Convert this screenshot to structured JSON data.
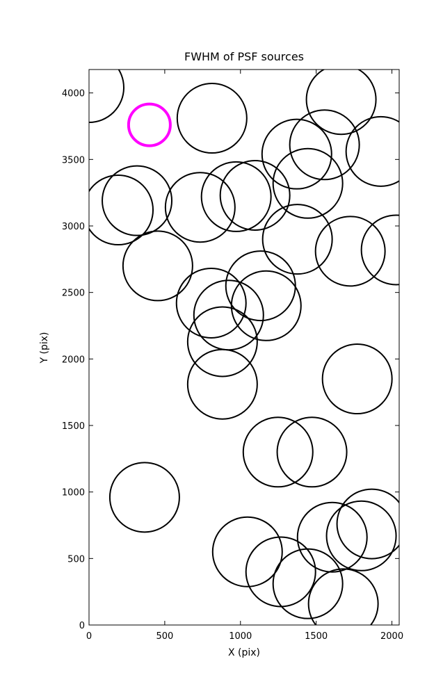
{
  "chart_data": {
    "type": "scatter",
    "title": "FWHM of PSF sources",
    "x_label": "X (pix)",
    "y_label": "Y (pix)",
    "xlim": [
      0,
      2048
    ],
    "ylim": [
      0,
      4176
    ],
    "xticks": [
      0,
      500,
      1000,
      1500,
      2000
    ],
    "yticks": [
      0,
      500,
      1000,
      1500,
      2000,
      2500,
      3000,
      3500,
      4000
    ],
    "series": [
      {
        "color": "#000000",
        "marker_radius": 50,
        "line_width": 2,
        "x": [
          0,
          812,
          1665,
          1555,
          1372,
          1927,
          1445,
          1096,
          972,
          734,
          317,
          193,
          1376,
          1725,
          2028,
          454,
          1133,
          807,
          1170,
          922,
          881,
          881,
          1771,
          1248,
          1472,
          367,
          1046,
          1266,
          1445,
          1606,
          1798,
          1867,
          1679
        ],
        "y": [
          4040,
          3810,
          3950,
          3610,
          3540,
          3560,
          3320,
          3230,
          3220,
          3140,
          3190,
          3120,
          2900,
          2810,
          2820,
          2700,
          2550,
          2420,
          2400,
          2330,
          2130,
          1810,
          1850,
          1300,
          1300,
          960,
          550,
          400,
          310,
          660,
          670,
          760,
          160
        ]
      },
      {
        "color": "#ff00ff",
        "marker_radius": 30,
        "line_width": 4,
        "x": [
          399
        ],
        "y": [
          3760
        ]
      }
    ]
  }
}
